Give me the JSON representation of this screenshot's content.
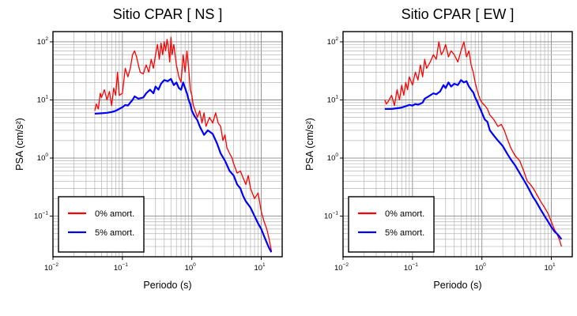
{
  "chart_data": [
    {
      "type": "line",
      "title": "Sitio CPAR [ NS ]",
      "xlabel": "Periodo (s)",
      "ylabel": "PSA (cm/s²)",
      "xscale": "log",
      "yscale": "log",
      "xlim": [
        0.01,
        20
      ],
      "ylim": [
        0.02,
        150
      ],
      "x_ticks": [
        {
          "base": "10",
          "exp": "−2"
        },
        {
          "base": "10",
          "exp": "−1"
        },
        {
          "base": "10",
          "exp": "0"
        },
        {
          "base": "10",
          "exp": "1"
        }
      ],
      "y_ticks": [
        {
          "base": "10",
          "exp": "−1"
        },
        {
          "base": "10",
          "exp": "0"
        },
        {
          "base": "10",
          "exp": "1"
        },
        {
          "base": "10",
          "exp": "2"
        }
      ],
      "grid": true,
      "legend_position": "bottom-left",
      "series": [
        {
          "name": "0% amort.",
          "color": "#ff0000",
          "x": [
            0.04,
            0.042,
            0.045,
            0.048,
            0.05,
            0.055,
            0.06,
            0.065,
            0.07,
            0.075,
            0.08,
            0.085,
            0.09,
            0.1,
            0.11,
            0.12,
            0.13,
            0.14,
            0.15,
            0.16,
            0.17,
            0.18,
            0.2,
            0.22,
            0.24,
            0.26,
            0.28,
            0.3,
            0.32,
            0.34,
            0.36,
            0.38,
            0.4,
            0.42,
            0.44,
            0.46,
            0.48,
            0.5,
            0.52,
            0.55,
            0.6,
            0.65,
            0.7,
            0.75,
            0.8,
            0.85,
            0.9,
            0.95,
            1.0,
            1.05,
            1.1,
            1.2,
            1.3,
            1.4,
            1.5,
            1.6,
            1.8,
            2.0,
            2.2,
            2.4,
            2.6,
            2.8,
            3.0,
            3.2,
            3.5,
            3.8,
            4.0,
            4.5,
            5.0,
            5.5,
            6.0,
            6.5,
            7.0,
            8.0,
            9.0,
            10.0,
            11.0,
            12.0,
            13.0,
            14.0
          ],
          "y": [
            6.5,
            8.5,
            7,
            13,
            11,
            15,
            10,
            14,
            8,
            16,
            12,
            30,
            12,
            13,
            35,
            25,
            35,
            60,
            70,
            55,
            40,
            30,
            28,
            40,
            30,
            50,
            35,
            60,
            90,
            50,
            95,
            60,
            100,
            70,
            110,
            80,
            45,
            120,
            60,
            90,
            40,
            25,
            20,
            60,
            30,
            70,
            35,
            15,
            12,
            8,
            7,
            5,
            6.5,
            4,
            6,
            3.5,
            5,
            4,
            6,
            4,
            3.5,
            2,
            2.5,
            1.5,
            1.2,
            1.0,
            0.8,
            0.55,
            0.6,
            0.45,
            0.35,
            0.5,
            0.3,
            0.2,
            0.25,
            0.12,
            0.08,
            0.06,
            0.04,
            0.025
          ]
        },
        {
          "name": "5% amort.",
          "color": "#0000ff",
          "x": [
            0.04,
            0.05,
            0.06,
            0.07,
            0.08,
            0.09,
            0.1,
            0.11,
            0.12,
            0.13,
            0.14,
            0.15,
            0.17,
            0.2,
            0.22,
            0.25,
            0.28,
            0.3,
            0.33,
            0.36,
            0.4,
            0.45,
            0.5,
            0.55,
            0.6,
            0.65,
            0.7,
            0.75,
            0.8,
            0.85,
            0.9,
            0.95,
            1.0,
            1.1,
            1.2,
            1.3,
            1.5,
            1.7,
            2.0,
            2.3,
            2.6,
            3.0,
            3.5,
            4.0,
            4.5,
            5.0,
            5.5,
            6.0,
            7.0,
            8.0,
            9.0,
            10.0,
            11.0,
            12.0,
            13.0,
            14.0
          ],
          "y": [
            5.8,
            5.9,
            6.0,
            6.2,
            6.5,
            7.0,
            7.5,
            8.2,
            8.0,
            9.0,
            10.0,
            11.5,
            10.5,
            11,
            13,
            15,
            13,
            17,
            15,
            19,
            22,
            21,
            23,
            18,
            20,
            16,
            15,
            20,
            16,
            13,
            10,
            8.5,
            6.5,
            5.2,
            4.5,
            3.5,
            2.5,
            3.0,
            2.6,
            1.8,
            1.2,
            0.9,
            0.6,
            0.5,
            0.35,
            0.3,
            0.22,
            0.18,
            0.14,
            0.1,
            0.075,
            0.06,
            0.045,
            0.035,
            0.028,
            0.024
          ]
        }
      ]
    },
    {
      "type": "line",
      "title": "Sitio CPAR [ EW ]",
      "xlabel": "Periodo (s)",
      "ylabel": "PSA (cm/s²)",
      "xscale": "log",
      "yscale": "log",
      "xlim": [
        0.01,
        20
      ],
      "ylim": [
        0.02,
        150
      ],
      "x_ticks": [
        {
          "base": "10",
          "exp": "−2"
        },
        {
          "base": "10",
          "exp": "−1"
        },
        {
          "base": "10",
          "exp": "0"
        },
        {
          "base": "10",
          "exp": "1"
        }
      ],
      "y_ticks": [
        {
          "base": "10",
          "exp": "−1"
        },
        {
          "base": "10",
          "exp": "0"
        },
        {
          "base": "10",
          "exp": "1"
        },
        {
          "base": "10",
          "exp": "2"
        }
      ],
      "grid": true,
      "legend_position": "bottom-left",
      "series": [
        {
          "name": "0% amort.",
          "color": "#ff0000",
          "x": [
            0.04,
            0.042,
            0.045,
            0.05,
            0.055,
            0.06,
            0.065,
            0.07,
            0.075,
            0.08,
            0.085,
            0.09,
            0.1,
            0.11,
            0.12,
            0.13,
            0.14,
            0.15,
            0.16,
            0.18,
            0.2,
            0.22,
            0.24,
            0.26,
            0.28,
            0.3,
            0.33,
            0.36,
            0.4,
            0.45,
            0.5,
            0.55,
            0.6,
            0.65,
            0.7,
            0.75,
            0.8,
            0.85,
            0.9,
            0.95,
            1.0,
            1.1,
            1.2,
            1.3,
            1.4,
            1.5,
            1.7,
            1.9,
            2.1,
            2.3,
            2.6,
            3.0,
            3.5,
            4.0,
            4.5,
            5.0,
            5.5,
            6.0,
            7.0,
            8.0,
            9.0,
            10.0,
            11.0,
            12.0,
            13.0,
            14.0
          ],
          "y": [
            10,
            8.5,
            9.5,
            12,
            8,
            15,
            10,
            18,
            12,
            20,
            15,
            25,
            18,
            30,
            22,
            40,
            25,
            50,
            35,
            45,
            60,
            50,
            100,
            60,
            70,
            90,
            55,
            70,
            60,
            45,
            70,
            100,
            55,
            70,
            40,
            30,
            20,
            15,
            12,
            10,
            9,
            8,
            7,
            5.5,
            5,
            4.5,
            3.5,
            3.8,
            3.0,
            2.2,
            1.5,
            1.1,
            0.9,
            0.6,
            0.4,
            0.35,
            0.3,
            0.25,
            0.18,
            0.14,
            0.11,
            0.08,
            0.06,
            0.05,
            0.04,
            0.03
          ]
        },
        {
          "name": "5% amort.",
          "color": "#0000ff",
          "x": [
            0.04,
            0.05,
            0.06,
            0.07,
            0.08,
            0.09,
            0.1,
            0.11,
            0.12,
            0.13,
            0.14,
            0.15,
            0.17,
            0.2,
            0.22,
            0.25,
            0.28,
            0.3,
            0.33,
            0.36,
            0.4,
            0.45,
            0.5,
            0.55,
            0.6,
            0.65,
            0.7,
            0.75,
            0.8,
            0.85,
            0.9,
            0.95,
            1.0,
            1.1,
            1.2,
            1.3,
            1.5,
            1.7,
            2.0,
            2.3,
            2.6,
            3.0,
            3.5,
            4.0,
            4.5,
            5.0,
            5.5,
            6.0,
            7.0,
            8.0,
            9.0,
            10.0,
            11.0,
            12.0,
            13.0,
            14.0
          ],
          "y": [
            7.0,
            7.0,
            7.2,
            7.4,
            7.8,
            8.2,
            8.0,
            8.5,
            8.3,
            8.6,
            9.0,
            10.5,
            11.5,
            13,
            12.5,
            14,
            18,
            16,
            20,
            17,
            19,
            18,
            22,
            20,
            21,
            17,
            15,
            13.5,
            11,
            9.5,
            8.0,
            7.0,
            6.0,
            4.6,
            4.2,
            3.0,
            2.4,
            2.0,
            1.6,
            1.2,
            0.95,
            0.75,
            0.55,
            0.42,
            0.33,
            0.26,
            0.21,
            0.18,
            0.13,
            0.1,
            0.08,
            0.065,
            0.055,
            0.05,
            0.045,
            0.04
          ]
        }
      ]
    }
  ]
}
